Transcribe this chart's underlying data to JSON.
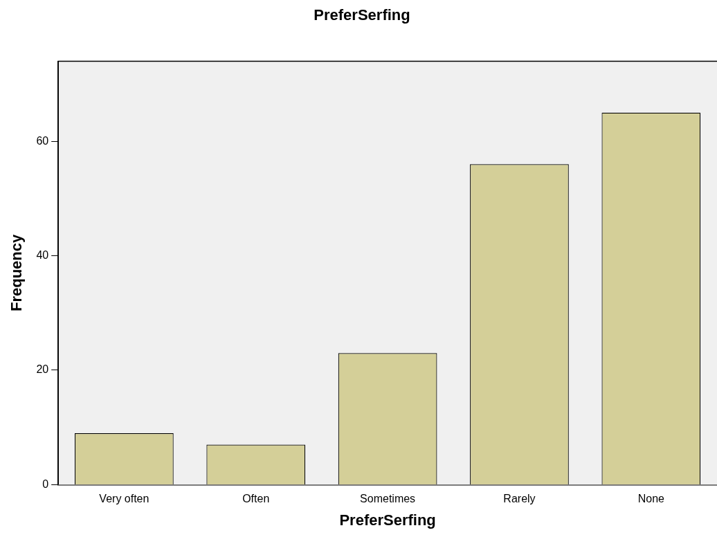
{
  "chart_data": {
    "type": "bar",
    "title": "PreferSerfing",
    "xlabel": "PreferSerfing",
    "ylabel": "Frequency",
    "categories": [
      "Very often",
      "Often",
      "Sometimes",
      "Rarely",
      "None"
    ],
    "values": [
      9,
      7,
      23,
      56,
      65
    ],
    "color": "#d4cf98",
    "ylim": [
      0,
      74
    ],
    "yticks": [
      0,
      20,
      40,
      60
    ],
    "grid": false,
    "legend": false
  }
}
